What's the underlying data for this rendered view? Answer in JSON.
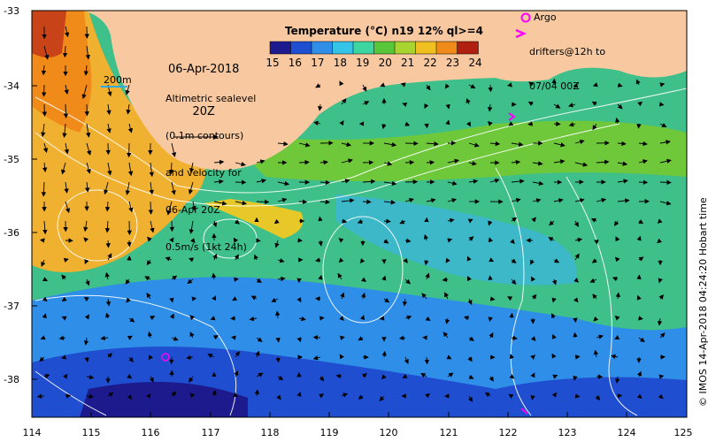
{
  "map": {
    "date_line1": "06-Apr-2018",
    "date_line2": "20Z",
    "scale_label": "200m",
    "description": [
      "Altimetric sealevel",
      "(0.1m contours)",
      "and velocity for",
      "06-Apr 20Z",
      "0.5m/s (1kt 24h)"
    ],
    "argo_label": "Argo",
    "drifters_label": [
      "drifters@12h to",
      "07/04 00Z"
    ],
    "credit": "© IMOS 14-Apr-2018 04:24:20 Hobart time",
    "lat_ticks": [
      "-33",
      "-34",
      "-35",
      "-36",
      "-37",
      "-38"
    ],
    "lon_ticks": [
      "114",
      "115",
      "116",
      "117",
      "118",
      "119",
      "120",
      "121",
      "122",
      "123",
      "124",
      "125"
    ]
  },
  "colorbar": {
    "title": "Temperature (°C) n19 12% ql>=4",
    "ticks": [
      "15",
      "16",
      "17",
      "18",
      "19",
      "20",
      "21",
      "22",
      "23",
      "24"
    ],
    "colors": [
      "#1c1a8c",
      "#1f4fd0",
      "#2f8ee8",
      "#33c4e8",
      "#3ed6a0",
      "#58c63a",
      "#a8d430",
      "#f0c020",
      "#f08a18",
      "#b02010"
    ]
  },
  "colors": {
    "land": "#f8c9a0",
    "arrows": "#000000",
    "contours": "#ffffff",
    "argo": "#ff00ff"
  }
}
